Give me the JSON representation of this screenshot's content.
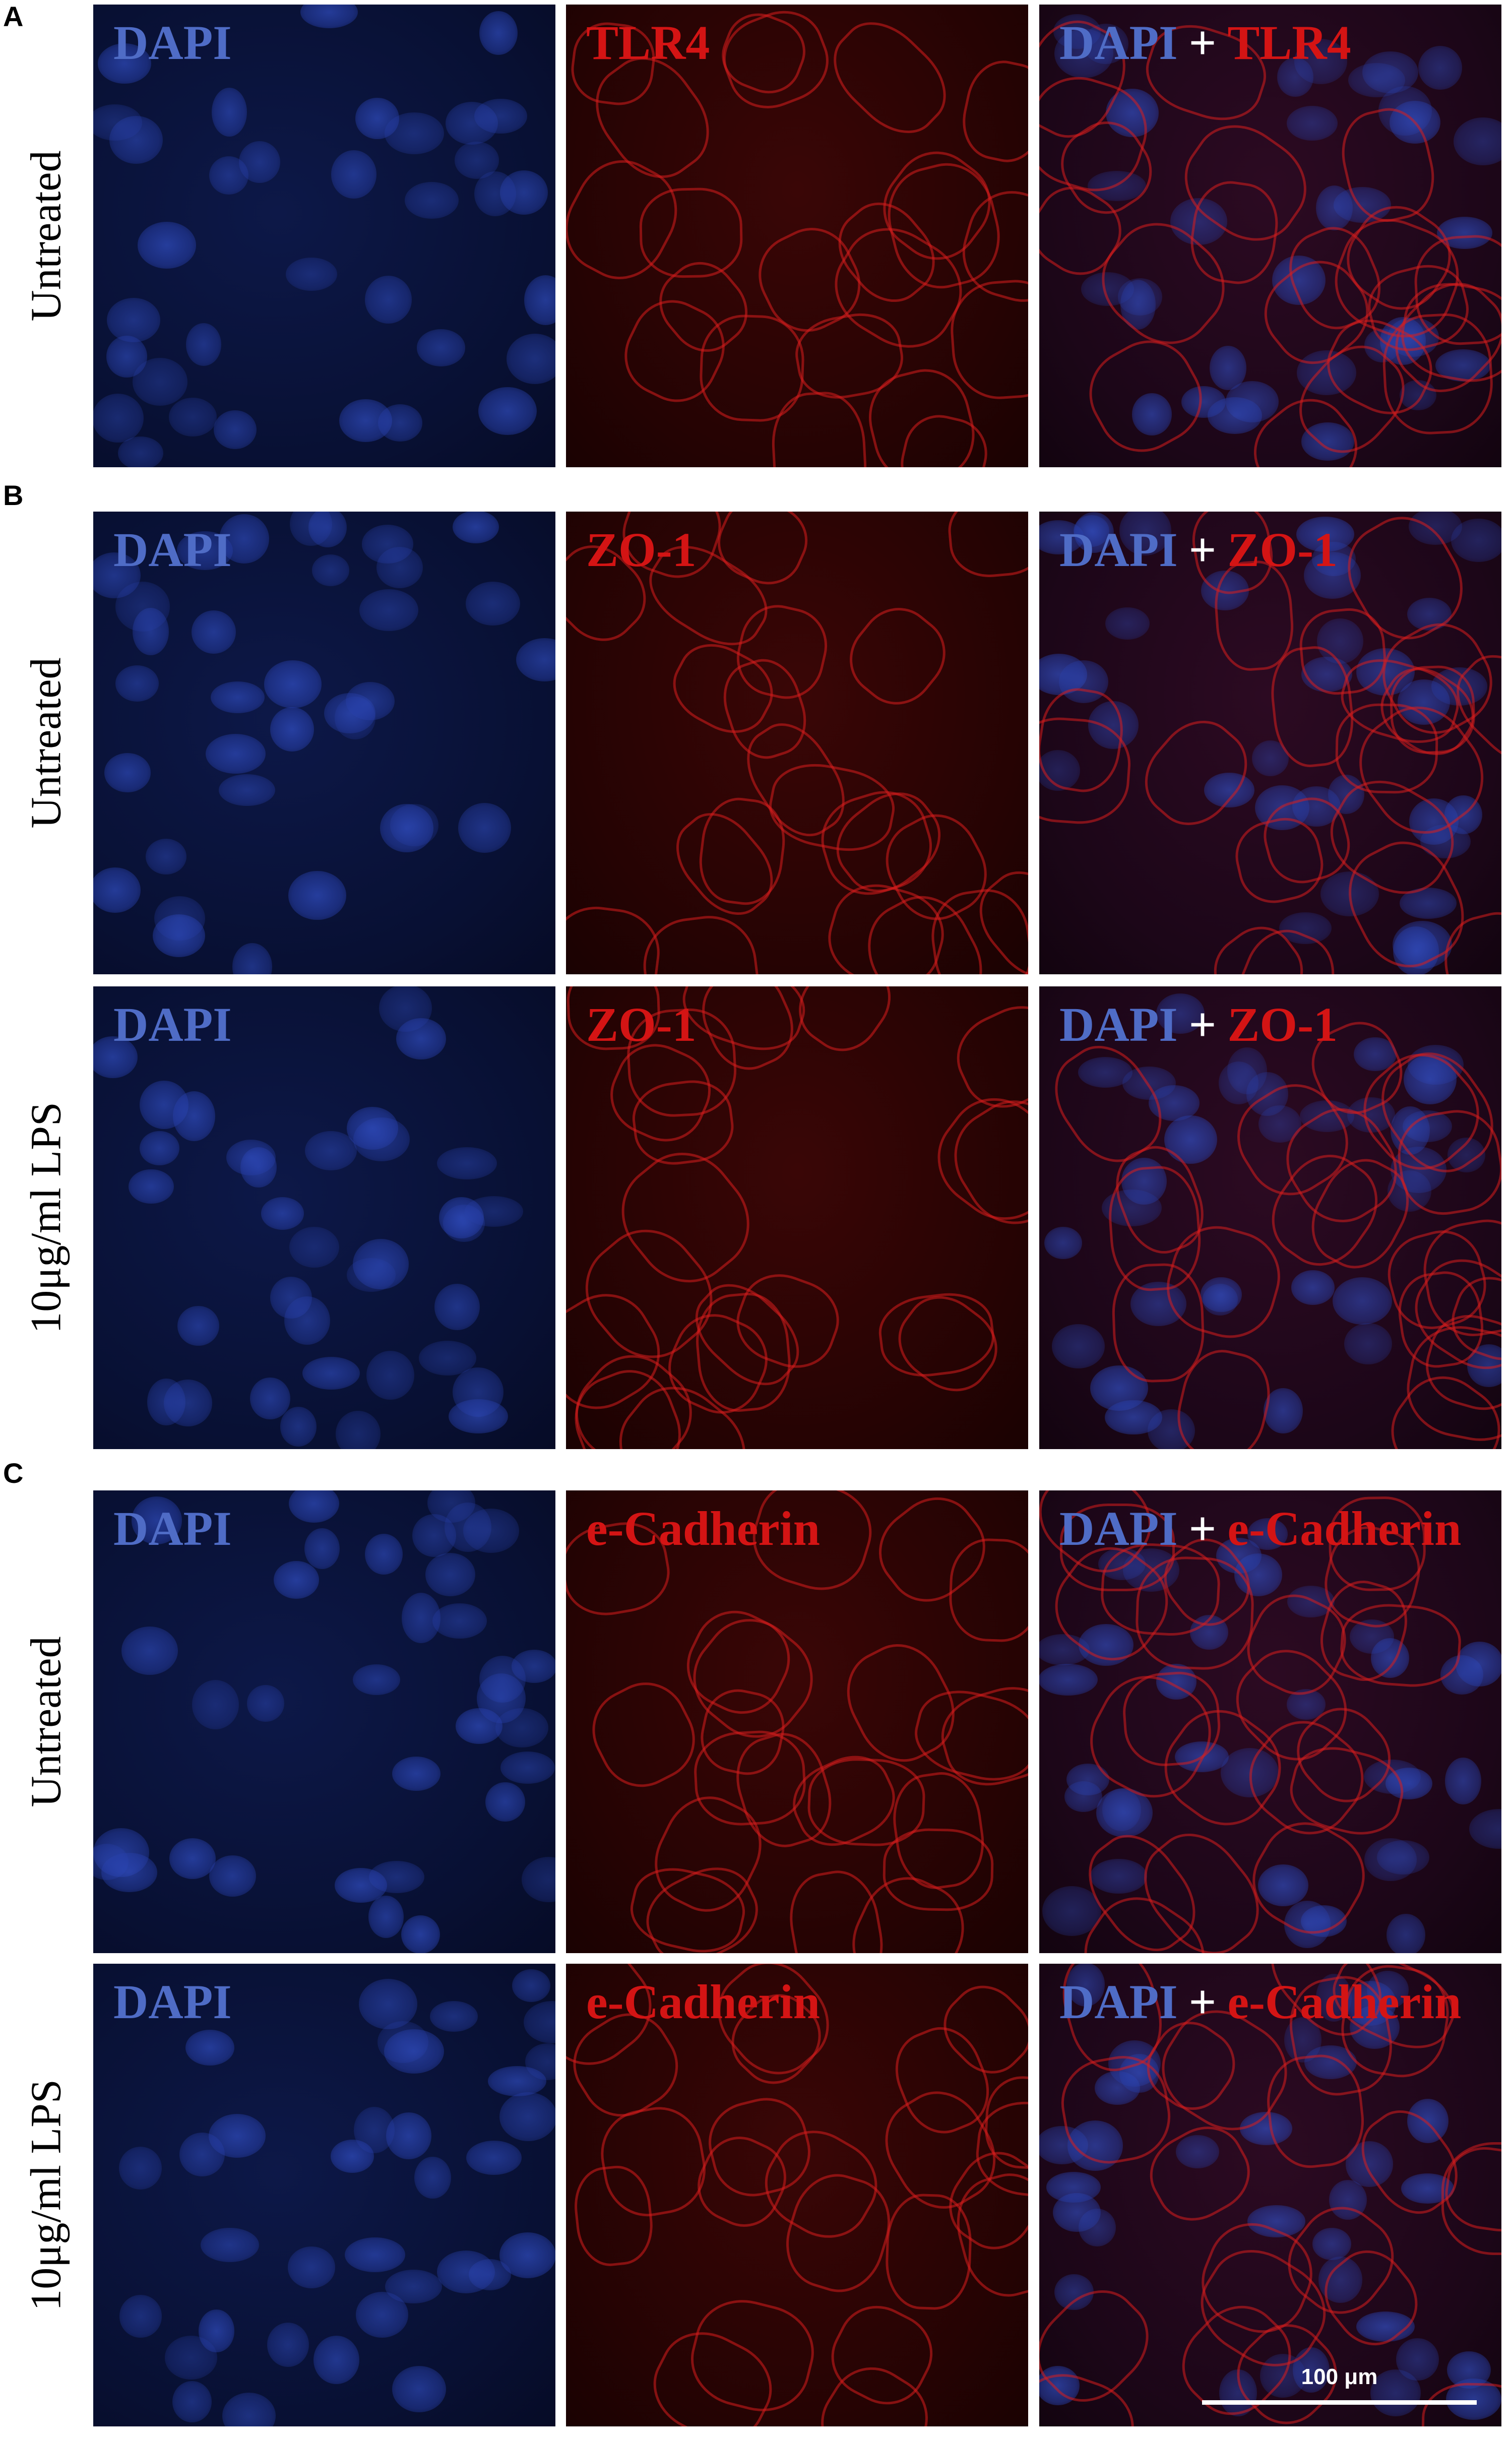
{
  "panels": [
    {
      "label": "A",
      "rows": [
        {
          "label": "Untreated",
          "cells": [
            {
              "parts": [
                {
                  "text": "DAPI",
                  "color": "#4f6cc6"
                }
              ]
            },
            {
              "parts": [
                {
                  "text": "TLR4",
                  "color": "#d41414"
                }
              ]
            },
            {
              "parts": [
                {
                  "text": "DAPI",
                  "color": "#4f6cc6"
                },
                {
                  "text": "+",
                  "color": "#ffffff"
                },
                {
                  "text": "TLR4",
                  "color": "#d41414"
                }
              ]
            }
          ]
        }
      ]
    },
    {
      "label": "B",
      "rows": [
        {
          "label": "Untreated",
          "cells": [
            {
              "parts": [
                {
                  "text": "DAPI",
                  "color": "#4f6cc6"
                }
              ]
            },
            {
              "parts": [
                {
                  "text": "ZO-1",
                  "color": "#d41414"
                }
              ]
            },
            {
              "parts": [
                {
                  "text": "DAPI",
                  "color": "#4f6cc6"
                },
                {
                  "text": "+",
                  "color": "#ffffff"
                },
                {
                  "text": "ZO-1",
                  "color": "#d41414"
                }
              ]
            }
          ]
        },
        {
          "label": "10μg/ml LPS",
          "cells": [
            {
              "parts": [
                {
                  "text": "DAPI",
                  "color": "#4f6cc6"
                }
              ]
            },
            {
              "parts": [
                {
                  "text": "ZO-1",
                  "color": "#d41414"
                }
              ]
            },
            {
              "parts": [
                {
                  "text": "DAPI",
                  "color": "#4f6cc6"
                },
                {
                  "text": "+",
                  "color": "#ffffff"
                },
                {
                  "text": "ZO-1",
                  "color": "#d41414"
                }
              ]
            }
          ]
        }
      ]
    },
    {
      "label": "C",
      "rows": [
        {
          "label": "Untreated",
          "cells": [
            {
              "parts": [
                {
                  "text": "DAPI",
                  "color": "#4f6cc6"
                }
              ]
            },
            {
              "parts": [
                {
                  "text": "e-Cadherin",
                  "color": "#d41414"
                }
              ]
            },
            {
              "parts": [
                {
                  "text": "DAPI",
                  "color": "#4f6cc6"
                },
                {
                  "text": "+",
                  "color": "#ffffff"
                },
                {
                  "text": "e-Cadherin",
                  "color": "#d41414"
                }
              ]
            }
          ]
        },
        {
          "label": "10μg/ml LPS",
          "cells": [
            {
              "parts": [
                {
                  "text": "DAPI",
                  "color": "#4f6cc6"
                }
              ]
            },
            {
              "parts": [
                {
                  "text": "e-Cadherin",
                  "color": "#d41414"
                }
              ]
            },
            {
              "parts": [
                {
                  "text": "DAPI",
                  "color": "#4f6cc6"
                },
                {
                  "text": "+",
                  "color": "#ffffff"
                },
                {
                  "text": "e-Cadherin",
                  "color": "#d41414"
                }
              ]
            }
          ]
        }
      ]
    }
  ],
  "scale_bar": "100 μm"
}
